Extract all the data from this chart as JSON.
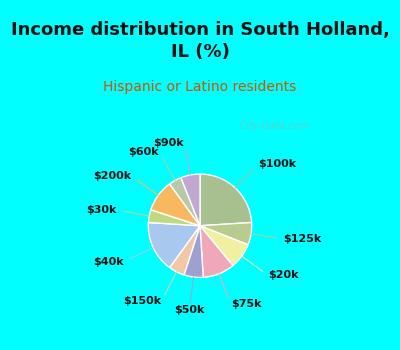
{
  "title": "Income distribution in South Holland,\nIL (%)",
  "subtitle": "Hispanic or Latino residents",
  "background_top": "#00FFFF",
  "watermark": "   City-Data.com",
  "title_fontsize": 13,
  "subtitle_fontsize": 10,
  "label_fontsize": 8,
  "labels": [
    "$100k",
    "$125k",
    "$20k",
    "$75k",
    "$50k",
    "$150k",
    "$40k",
    "$30k",
    "$200k",
    "$60k",
    "$90k"
  ],
  "sizes": [
    24,
    7,
    8,
    10,
    6,
    5,
    16,
    4,
    10,
    4,
    6
  ],
  "colors": [
    "#a8c090",
    "#b8cc90",
    "#f0f0a0",
    "#f0a8b8",
    "#a0a0d0",
    "#f0c8a8",
    "#a8c8f0",
    "#c0d880",
    "#f8b860",
    "#b8c8a8",
    "#c0a8d0"
  ],
  "label_positions": [
    [
      "$100k",
      15,
      1.42
    ],
    [
      "$125k",
      35,
      1.42
    ],
    [
      "$20k",
      52,
      1.42
    ],
    [
      "$75k",
      73,
      1.42
    ],
    [
      "$50k",
      94,
      1.42
    ],
    [
      "$150k",
      109,
      1.42
    ],
    [
      "$40k",
      138,
      1.42
    ],
    [
      "$30k",
      172,
      1.42
    ],
    [
      "$200k",
      192,
      1.42
    ],
    [
      "$60k",
      213,
      1.42
    ],
    [
      "$90k",
      227,
      1.42
    ]
  ]
}
